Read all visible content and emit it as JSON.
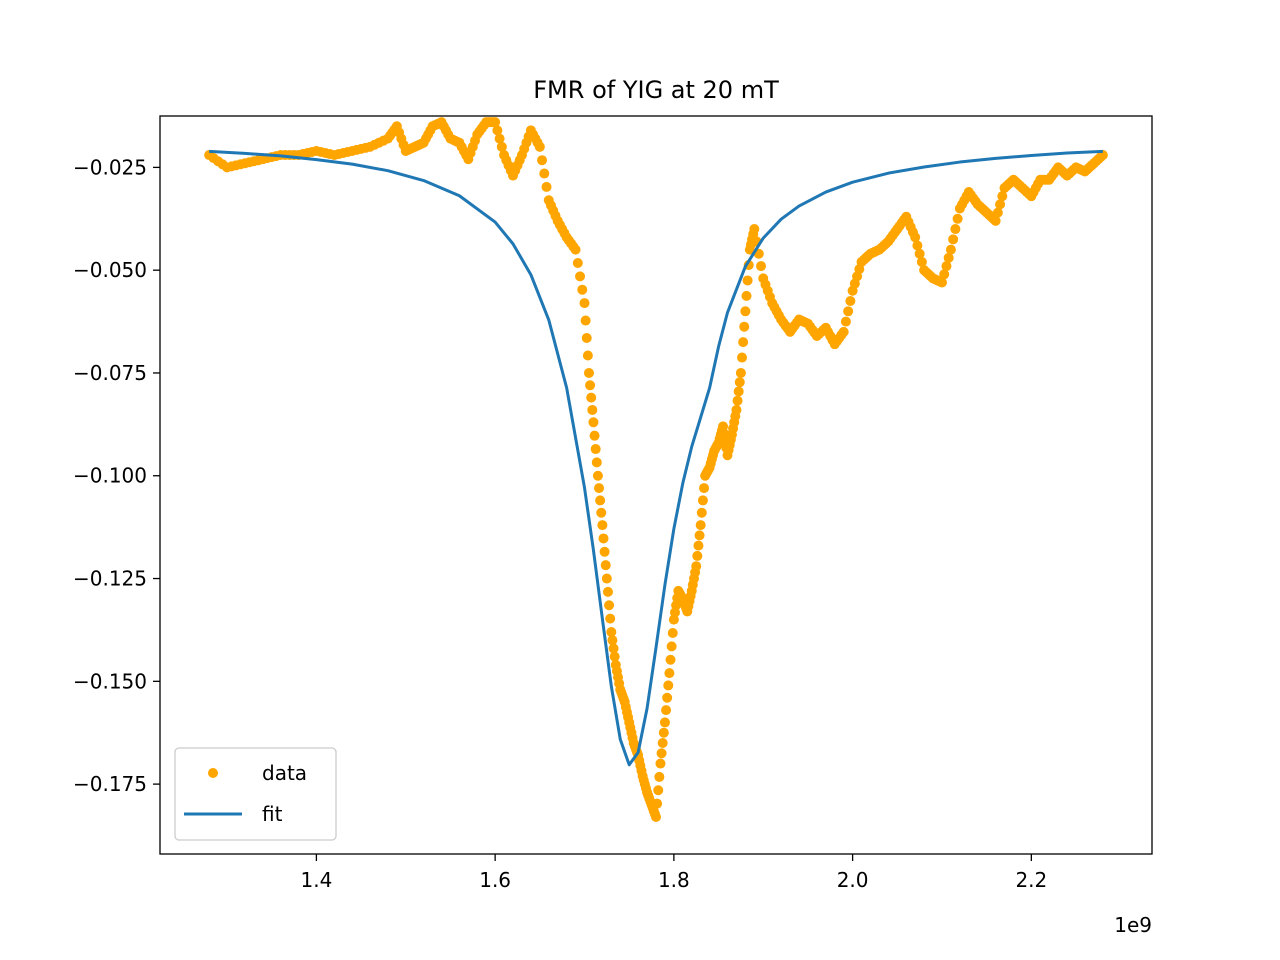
{
  "chart_data": {
    "type": "line",
    "title": "FMR of YIG at 20 mT",
    "xlabel": "",
    "ylabel": "",
    "x_offset_label": "1e9",
    "xlim": [
      1.225,
      2.335
    ],
    "ylim": [
      -0.192,
      -0.0125
    ],
    "x_ticks": [
      1.4,
      1.6,
      1.8,
      2.0,
      2.2
    ],
    "x_tick_labels": [
      "1.4",
      "1.6",
      "1.8",
      "2.0",
      "2.2"
    ],
    "y_ticks": [
      -0.025,
      -0.05,
      -0.075,
      -0.1,
      -0.125,
      -0.15,
      -0.175
    ],
    "y_tick_labels": [
      "−0.025",
      "−0.050",
      "−0.075",
      "−0.100",
      "−0.125",
      "−0.150",
      "−0.175"
    ],
    "grid": false,
    "legend_position": "lower-left",
    "series": [
      {
        "name": "data",
        "kind": "scatter",
        "color": "#ffa500",
        "x": [
          1.28,
          1.3,
          1.32,
          1.34,
          1.36,
          1.38,
          1.4,
          1.42,
          1.44,
          1.46,
          1.48,
          1.49,
          1.5,
          1.51,
          1.52,
          1.53,
          1.54,
          1.55,
          1.56,
          1.57,
          1.58,
          1.59,
          1.6,
          1.61,
          1.62,
          1.63,
          1.64,
          1.65,
          1.66,
          1.67,
          1.68,
          1.69,
          1.7,
          1.705,
          1.71,
          1.715,
          1.72,
          1.725,
          1.73,
          1.735,
          1.74,
          1.745,
          1.75,
          1.755,
          1.76,
          1.765,
          1.77,
          1.775,
          1.78,
          1.785,
          1.79,
          1.795,
          1.8,
          1.805,
          1.81,
          1.815,
          1.82,
          1.825,
          1.83,
          1.835,
          1.84,
          1.845,
          1.85,
          1.855,
          1.86,
          1.865,
          1.87,
          1.875,
          1.88,
          1.885,
          1.89,
          1.9,
          1.91,
          1.92,
          1.93,
          1.94,
          1.95,
          1.96,
          1.97,
          1.98,
          1.99,
          2.0,
          2.01,
          2.02,
          2.03,
          2.04,
          2.05,
          2.06,
          2.07,
          2.08,
          2.09,
          2.1,
          2.11,
          2.12,
          2.13,
          2.14,
          2.15,
          2.16,
          2.17,
          2.18,
          2.19,
          2.2,
          2.21,
          2.22,
          2.23,
          2.24,
          2.25,
          2.26,
          2.27,
          2.28
        ],
        "y": [
          -0.022,
          -0.025,
          -0.024,
          -0.023,
          -0.022,
          -0.022,
          -0.021,
          -0.022,
          -0.021,
          -0.02,
          -0.018,
          -0.015,
          -0.021,
          -0.02,
          -0.019,
          -0.015,
          -0.014,
          -0.018,
          -0.019,
          -0.023,
          -0.017,
          -0.014,
          -0.014,
          -0.022,
          -0.027,
          -0.022,
          -0.016,
          -0.02,
          -0.033,
          -0.038,
          -0.042,
          -0.045,
          -0.058,
          -0.075,
          -0.087,
          -0.1,
          -0.112,
          -0.125,
          -0.138,
          -0.146,
          -0.152,
          -0.155,
          -0.16,
          -0.165,
          -0.168,
          -0.173,
          -0.177,
          -0.18,
          -0.183,
          -0.17,
          -0.16,
          -0.148,
          -0.135,
          -0.128,
          -0.13,
          -0.133,
          -0.128,
          -0.122,
          -0.112,
          -0.1,
          -0.098,
          -0.094,
          -0.092,
          -0.088,
          -0.095,
          -0.09,
          -0.084,
          -0.075,
          -0.06,
          -0.045,
          -0.04,
          -0.052,
          -0.058,
          -0.062,
          -0.065,
          -0.062,
          -0.063,
          -0.066,
          -0.064,
          -0.068,
          -0.065,
          -0.055,
          -0.048,
          -0.046,
          -0.045,
          -0.043,
          -0.04,
          -0.037,
          -0.042,
          -0.05,
          -0.052,
          -0.053,
          -0.045,
          -0.035,
          -0.031,
          -0.034,
          -0.036,
          -0.038,
          -0.03,
          -0.028,
          -0.03,
          -0.032,
          -0.028,
          -0.028,
          -0.025,
          -0.027,
          -0.025,
          -0.026,
          -0.024,
          -0.022
        ]
      },
      {
        "name": "fit",
        "kind": "line",
        "color": "#1f77b4",
        "x": [
          1.28,
          1.32,
          1.36,
          1.4,
          1.44,
          1.48,
          1.52,
          1.56,
          1.6,
          1.62,
          1.64,
          1.66,
          1.68,
          1.7,
          1.71,
          1.72,
          1.73,
          1.74,
          1.75,
          1.76,
          1.77,
          1.78,
          1.79,
          1.8,
          1.81,
          1.82,
          1.83,
          1.84,
          1.85,
          1.86,
          1.88,
          1.9,
          1.92,
          1.94,
          1.97,
          2.0,
          2.04,
          2.08,
          2.12,
          2.16,
          2.2,
          2.24,
          2.28
        ],
        "y": [
          -0.0211,
          -0.0216,
          -0.0222,
          -0.0231,
          -0.0242,
          -0.0258,
          -0.0282,
          -0.0319,
          -0.0383,
          -0.0436,
          -0.0511,
          -0.0621,
          -0.0786,
          -0.1029,
          -0.1181,
          -0.1348,
          -0.1512,
          -0.1641,
          -0.1703,
          -0.1673,
          -0.1566,
          -0.1418,
          -0.1265,
          -0.1129,
          -0.1018,
          -0.0929,
          -0.0858,
          -0.0786,
          -0.0686,
          -0.0603,
          -0.0491,
          -0.0422,
          -0.0376,
          -0.0344,
          -0.031,
          -0.0286,
          -0.0264,
          -0.0249,
          -0.0237,
          -0.0228,
          -0.0221,
          -0.0215,
          -0.0211
        ]
      }
    ]
  }
}
